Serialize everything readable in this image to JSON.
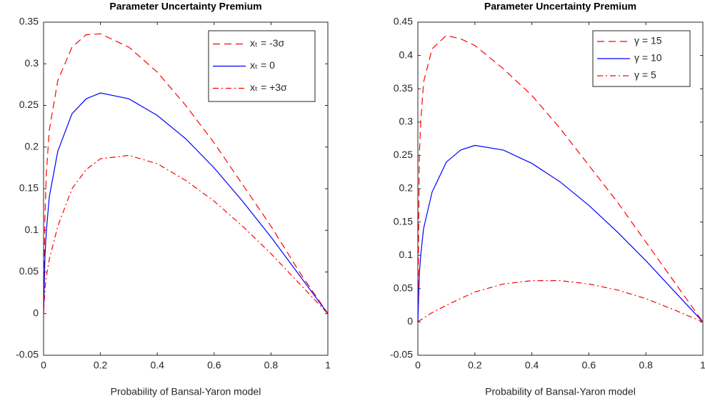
{
  "chart_data": [
    {
      "type": "line",
      "title": "Parameter Uncertainty Premium",
      "xlabel": "Probability of Bansal-Yaron model",
      "x": [
        0,
        0.005,
        0.01,
        0.02,
        0.05,
        0.1,
        0.15,
        0.2,
        0.3,
        0.4,
        0.5,
        0.6,
        0.7,
        0.8,
        0.9,
        0.95,
        1
      ],
      "series": [
        {
          "name": "xₜ = -3σ",
          "color": "#ff0000",
          "style": "dashed",
          "values": [
            0,
            0.12,
            0.17,
            0.22,
            0.28,
            0.32,
            0.335,
            0.336,
            0.32,
            0.29,
            0.25,
            0.205,
            0.155,
            0.105,
            0.05,
            0.025,
            0
          ]
        },
        {
          "name": "xₜ = 0",
          "color": "#0000ff",
          "style": "solid",
          "values": [
            0,
            0.07,
            0.1,
            0.14,
            0.195,
            0.24,
            0.258,
            0.265,
            0.258,
            0.238,
            0.21,
            0.175,
            0.135,
            0.092,
            0.046,
            0.023,
            0
          ]
        },
        {
          "name": "xₜ = +3σ",
          "color": "#ff0000",
          "style": "dashdot",
          "values": [
            0,
            0.03,
            0.045,
            0.065,
            0.105,
            0.15,
            0.173,
            0.186,
            0.19,
            0.18,
            0.16,
            0.135,
            0.105,
            0.072,
            0.036,
            0.018,
            0
          ]
        }
      ],
      "xlim": [
        0,
        1
      ],
      "ylim": [
        -0.05,
        0.35
      ],
      "xticks": [
        0,
        0.2,
        0.4,
        0.6,
        0.8,
        1
      ],
      "yticks": [
        -0.05,
        0,
        0.05,
        0.1,
        0.15,
        0.2,
        0.25,
        0.3,
        0.35
      ],
      "legend": "upper right"
    },
    {
      "type": "line",
      "title": "Parameter Uncertainty Premium",
      "xlabel": "Probability of Bansal-Yaron model",
      "x": [
        0,
        0.005,
        0.01,
        0.02,
        0.05,
        0.1,
        0.15,
        0.2,
        0.3,
        0.4,
        0.5,
        0.6,
        0.7,
        0.8,
        0.9,
        0.95,
        1
      ],
      "series": [
        {
          "name": "γ = 15",
          "color": "#ff0000",
          "style": "dashed",
          "values": [
            0,
            0.25,
            0.3,
            0.36,
            0.41,
            0.43,
            0.425,
            0.415,
            0.38,
            0.34,
            0.29,
            0.235,
            0.18,
            0.12,
            0.06,
            0.03,
            0
          ]
        },
        {
          "name": "γ = 10",
          "color": "#0000ff",
          "style": "solid",
          "values": [
            0,
            0.07,
            0.1,
            0.14,
            0.195,
            0.24,
            0.258,
            0.265,
            0.258,
            0.238,
            0.21,
            0.175,
            0.135,
            0.092,
            0.046,
            0.023,
            0
          ]
        },
        {
          "name": "γ = 5",
          "color": "#ff0000",
          "style": "dashdot",
          "values": [
            0,
            0.002,
            0.003,
            0.006,
            0.014,
            0.025,
            0.035,
            0.045,
            0.057,
            0.062,
            0.062,
            0.057,
            0.048,
            0.035,
            0.018,
            0.009,
            0
          ]
        }
      ],
      "xlim": [
        0,
        1
      ],
      "ylim": [
        -0.05,
        0.45
      ],
      "xticks": [
        0,
        0.2,
        0.4,
        0.6,
        0.8,
        1
      ],
      "yticks": [
        -0.05,
        0,
        0.05,
        0.1,
        0.15,
        0.2,
        0.25,
        0.3,
        0.35,
        0.4,
        0.45
      ],
      "legend": "upper right"
    }
  ]
}
